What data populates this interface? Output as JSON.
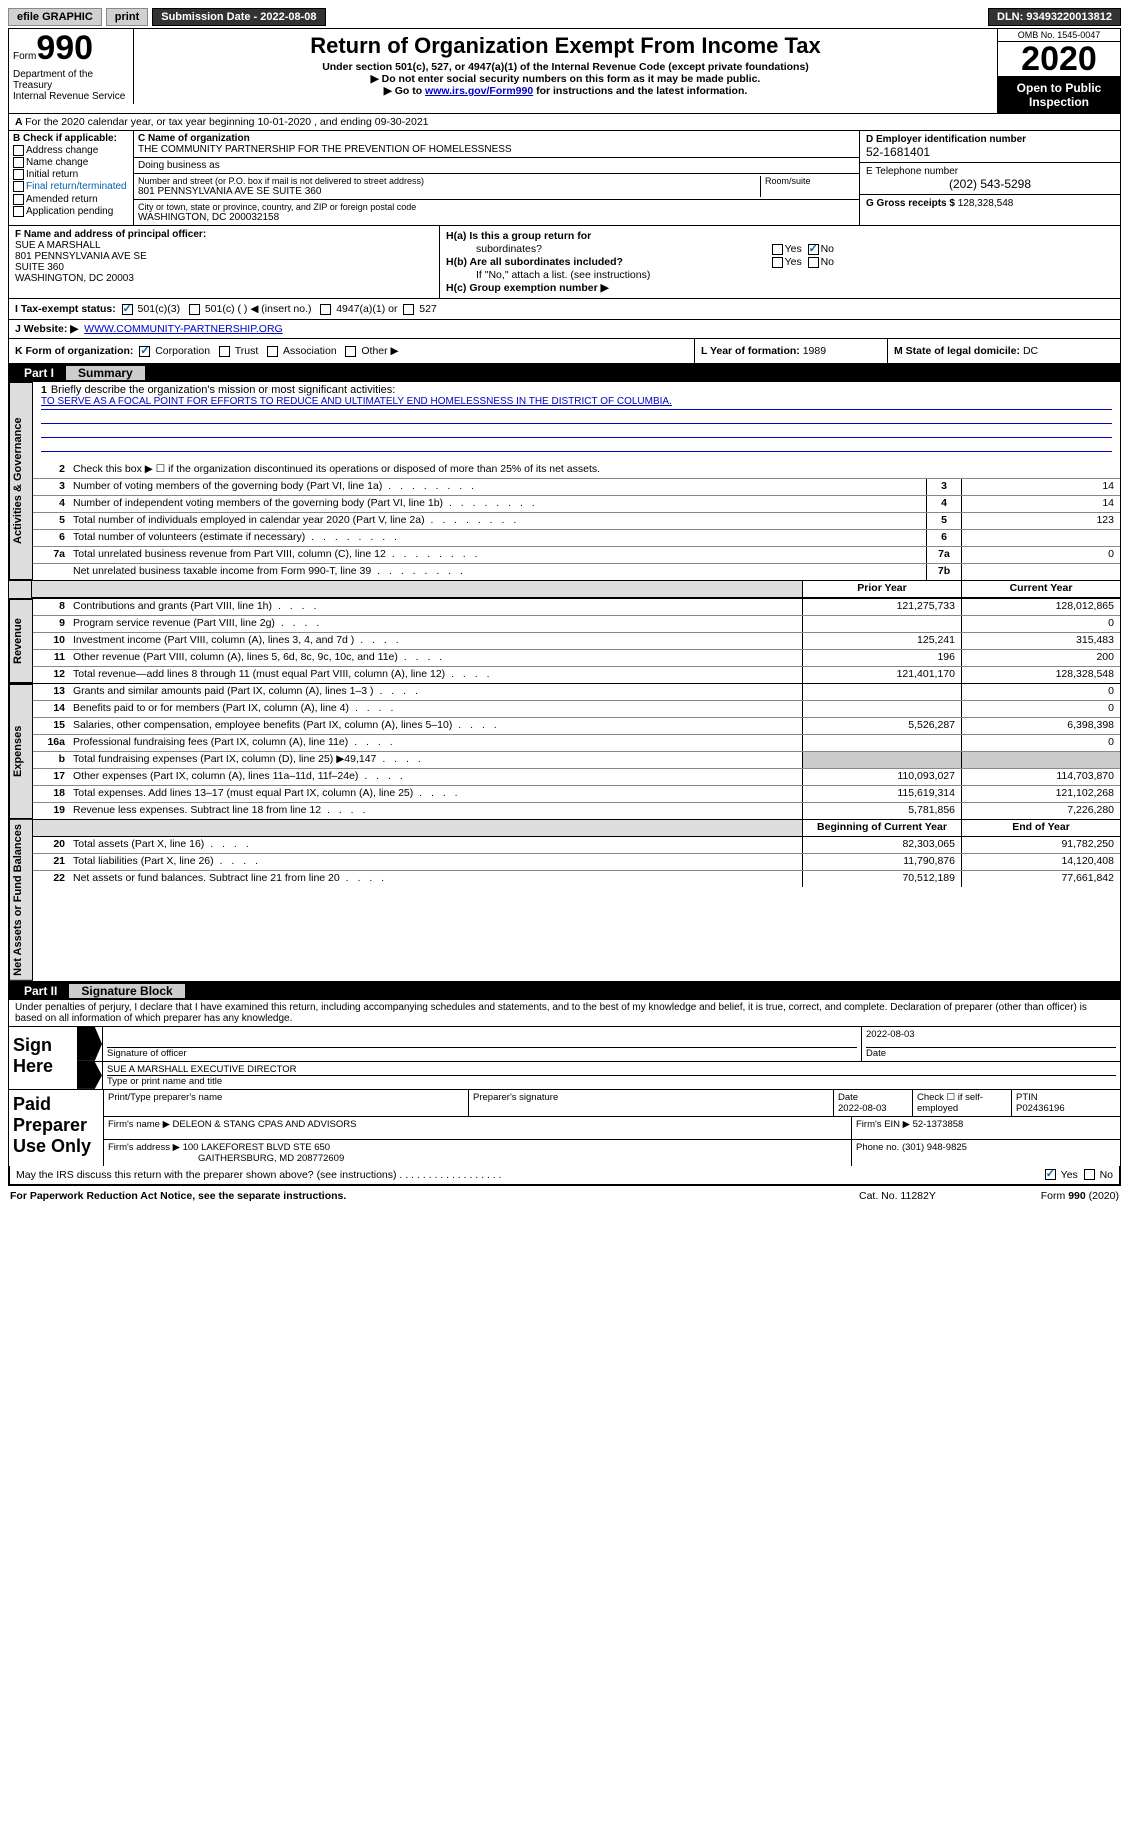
{
  "header": {
    "efile_label": "efile GRAPHIC",
    "print_btn": "print",
    "sub_date_label": "Submission Date - 2022-08-08",
    "dln": "DLN: 93493220013812"
  },
  "form": {
    "form_label": "Form",
    "form_num": "990",
    "dept": "Department of the Treasury",
    "irs": "Internal Revenue Service",
    "title": "Return of Organization Exempt From Income Tax",
    "subtitle": "Under section 501(c), 527, or 4947(a)(1) of the Internal Revenue Code (except private foundations)",
    "ssn_note": "▶ Do not enter social security numbers on this form as it may be made public.",
    "goto_pre": "▶ Go to ",
    "goto_link": "www.irs.gov/Form990",
    "goto_post": " for instructions and the latest information.",
    "omb": "OMB No. 1545-0047",
    "year": "2020",
    "open": "Open to Public Inspection"
  },
  "row_a": "For the 2020 calendar year, or tax year beginning 10-01-2020   , and ending 09-30-2021",
  "box_b": {
    "header": "B Check if applicable:",
    "items": [
      "Address change",
      "Name change",
      "Initial return",
      "Final return/terminated",
      "Amended return",
      "Application pending"
    ]
  },
  "box_c": {
    "name_label": "C Name of organization",
    "name": "THE COMMUNITY PARTNERSHIP FOR THE PREVENTION OF HOMELESSNESS",
    "dba_label": "Doing business as",
    "addr_label": "Number and street (or P.O. box if mail is not delivered to street address)",
    "room_label": "Room/suite",
    "addr": "801 PENNSYLVANIA AVE SE SUITE 360",
    "city_label": "City or town, state or province, country, and ZIP or foreign postal code",
    "city": "WASHINGTON, DC  200032158"
  },
  "box_d": {
    "label": "D Employer identification number",
    "val": "52-1681401"
  },
  "box_e": {
    "label": "E Telephone number",
    "val": "(202) 543-5298"
  },
  "box_g": {
    "label": "G Gross receipts $",
    "val": "128,328,548"
  },
  "box_f": {
    "label": "F  Name and address of principal officer:",
    "name": "SUE A MARSHALL",
    "addr1": "801 PENNSYLVANIA AVE SE",
    "addr2": "SUITE 360",
    "addr3": "WASHINGTON, DC  20003"
  },
  "box_h": {
    "ha_label": "H(a)  Is this a group return for",
    "ha_sub": "subordinates?",
    "hb_label": "H(b)  Are all subordinates included?",
    "hb_note": "If \"No,\" attach a list. (see instructions)",
    "hc_label": "H(c)  Group exemption number ▶",
    "yes": "Yes",
    "no": "No"
  },
  "box_i": {
    "label": "I   Tax-exempt status:",
    "o1": "501(c)(3)",
    "o2": "501(c) (  ) ◀ (insert no.)",
    "o3": "4947(a)(1) or",
    "o4": "527"
  },
  "box_j": {
    "label": "J   Website: ▶",
    "val": "WWW.COMMUNITY-PARTNERSHIP.ORG"
  },
  "box_k": {
    "label": "K Form of organization:",
    "corp": "Corporation",
    "trust": "Trust",
    "assoc": "Association",
    "other": "Other ▶"
  },
  "box_l": {
    "label": "L Year of formation:",
    "val": "1989"
  },
  "box_m": {
    "label": "M State of legal domicile:",
    "val": "DC"
  },
  "part1": {
    "label": "Part I",
    "title": "Summary",
    "q1": "Briefly describe the organization's mission or most significant activities:",
    "mission": "TO SERVE AS A FOCAL POINT FOR EFFORTS TO REDUCE AND ULTIMATELY END HOMELESSNESS IN THE DISTRICT OF COLUMBIA.",
    "q2": "Check this box ▶ ☐  if the organization discontinued its operations or disposed of more than 25% of its net assets.",
    "rows_gov": [
      {
        "n": "3",
        "t": "Number of voting members of the governing body (Part VI, line 1a)",
        "c": "3",
        "v": "14"
      },
      {
        "n": "4",
        "t": "Number of independent voting members of the governing body (Part VI, line 1b)",
        "c": "4",
        "v": "14"
      },
      {
        "n": "5",
        "t": "Total number of individuals employed in calendar year 2020 (Part V, line 2a)",
        "c": "5",
        "v": "123"
      },
      {
        "n": "6",
        "t": "Total number of volunteers (estimate if necessary)",
        "c": "6",
        "v": ""
      },
      {
        "n": "7a",
        "t": "Total unrelated business revenue from Part VIII, column (C), line 12",
        "c": "7a",
        "v": "0"
      },
      {
        "n": "",
        "t": "Net unrelated business taxable income from Form 990-T, line 39",
        "c": "7b",
        "v": ""
      }
    ],
    "col_prior": "Prior Year",
    "col_current": "Current Year",
    "rows_rev": [
      {
        "n": "8",
        "t": "Contributions and grants (Part VIII, line 1h)",
        "p": "121,275,733",
        "c": "128,012,865"
      },
      {
        "n": "9",
        "t": "Program service revenue (Part VIII, line 2g)",
        "p": "",
        "c": "0"
      },
      {
        "n": "10",
        "t": "Investment income (Part VIII, column (A), lines 3, 4, and 7d )",
        "p": "125,241",
        "c": "315,483"
      },
      {
        "n": "11",
        "t": "Other revenue (Part VIII, column (A), lines 5, 6d, 8c, 9c, 10c, and 11e)",
        "p": "196",
        "c": "200"
      },
      {
        "n": "12",
        "t": "Total revenue—add lines 8 through 11 (must equal Part VIII, column (A), line 12)",
        "p": "121,401,170",
        "c": "128,328,548"
      }
    ],
    "rows_exp": [
      {
        "n": "13",
        "t": "Grants and similar amounts paid (Part IX, column (A), lines 1–3 )",
        "p": "",
        "c": "0"
      },
      {
        "n": "14",
        "t": "Benefits paid to or for members (Part IX, column (A), line 4)",
        "p": "",
        "c": "0"
      },
      {
        "n": "15",
        "t": "Salaries, other compensation, employee benefits (Part IX, column (A), lines 5–10)",
        "p": "5,526,287",
        "c": "6,398,398"
      },
      {
        "n": "16a",
        "t": "Professional fundraising fees (Part IX, column (A), line 11e)",
        "p": "",
        "c": "0"
      },
      {
        "n": "b",
        "t": "Total fundraising expenses (Part IX, column (D), line 25) ▶49,147",
        "p": "gray",
        "c": "gray"
      },
      {
        "n": "17",
        "t": "Other expenses (Part IX, column (A), lines 11a–11d, 11f–24e)",
        "p": "110,093,027",
        "c": "114,703,870"
      },
      {
        "n": "18",
        "t": "Total expenses. Add lines 13–17 (must equal Part IX, column (A), line 25)",
        "p": "115,619,314",
        "c": "121,102,268"
      },
      {
        "n": "19",
        "t": "Revenue less expenses. Subtract line 18 from line 12",
        "p": "5,781,856",
        "c": "7,226,280"
      }
    ],
    "col_begin": "Beginning of Current Year",
    "col_end": "End of Year",
    "rows_net": [
      {
        "n": "20",
        "t": "Total assets (Part X, line 16)",
        "p": "82,303,065",
        "c": "91,782,250"
      },
      {
        "n": "21",
        "t": "Total liabilities (Part X, line 26)",
        "p": "11,790,876",
        "c": "14,120,408"
      },
      {
        "n": "22",
        "t": "Net assets or fund balances. Subtract line 21 from line 20",
        "p": "70,512,189",
        "c": "77,661,842"
      }
    ],
    "vert_gov": "Activities & Governance",
    "vert_rev": "Revenue",
    "vert_exp": "Expenses",
    "vert_net": "Net Assets or Fund Balances"
  },
  "part2": {
    "label": "Part II",
    "title": "Signature Block",
    "intro": "Under penalties of perjury, I declare that I have examined this return, including accompanying schedules and statements, and to the best of my knowledge and belief, it is true, correct, and complete. Declaration of preparer (other than officer) is based on all information of which preparer has any knowledge.",
    "sign_here": "Sign Here",
    "sig_officer": "Signature of officer",
    "sig_date_label": "Date",
    "sig_date": "2022-08-03",
    "officer_name": "SUE A MARSHALL  EXECUTIVE DIRECTOR",
    "type_name": "Type or print name and title",
    "paid_prep": "Paid Preparer Use Only",
    "prep_name_label": "Print/Type preparer's name",
    "prep_sig_label": "Preparer's signature",
    "prep_date_label": "Date",
    "prep_date": "2022-08-03",
    "check_se_label": "Check ☐ if self-employed",
    "ptin_label": "PTIN",
    "ptin": "P02436196",
    "firm_name_label": "Firm's name    ▶",
    "firm_name": "DELEON & STANG CPAS AND ADVISORS",
    "firm_ein_label": "Firm's EIN ▶",
    "firm_ein": "52-1373858",
    "firm_addr_label": "Firm's address ▶",
    "firm_addr1": "100 LAKEFOREST BLVD STE 650",
    "firm_addr2": "GAITHERSBURG, MD  208772609",
    "phone_label": "Phone no.",
    "phone": "(301) 948-9825",
    "discuss": "May the IRS discuss this return with the preparer shown above? (see instructions)"
  },
  "footer": {
    "pra": "For Paperwork Reduction Act Notice, see the separate instructions.",
    "cat": "Cat. No. 11282Y",
    "form": "Form 990 (2020)"
  }
}
